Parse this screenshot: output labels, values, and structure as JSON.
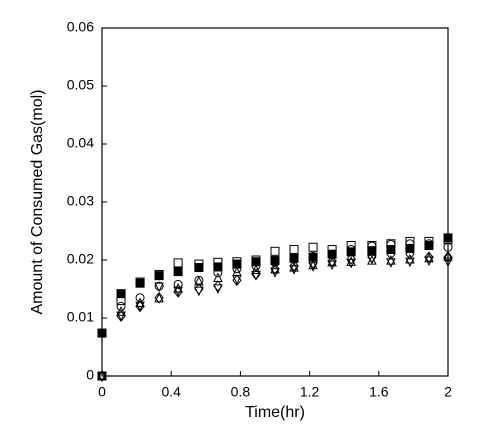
{
  "chart_data": {
    "type": "scatter",
    "xlabel": "Time(hr)",
    "ylabel": "Amount of Consumed Gas(mol)",
    "xlim": [
      0,
      2
    ],
    "ylim": [
      0,
      0.06
    ],
    "xticks": [
      0,
      0.4,
      0.8,
      1.2,
      1.6,
      2
    ],
    "yticks": [
      0,
      0.01,
      0.02,
      0.03,
      0.04,
      0.05,
      0.06
    ],
    "x": [
      0,
      0.11,
      0.22,
      0.33,
      0.44,
      0.56,
      0.67,
      0.78,
      0.89,
      1.0,
      1.11,
      1.22,
      1.33,
      1.44,
      1.56,
      1.67,
      1.78,
      1.89,
      2.0
    ],
    "series": [
      {
        "color": "#000000",
        "marker": "diamond",
        "values": [
          0,
          0.0103,
          0.012,
          0.0135,
          0.0145,
          0.015,
          0.0155,
          0.0165,
          0.0175,
          0.0185,
          0.019,
          0.0195,
          0.0198,
          0.0202,
          0.0205,
          0.021,
          0.021,
          0.0205,
          0.0205
        ]
      },
      {
        "color": "#000000",
        "marker": "triangle-down",
        "values": [
          0,
          0.0105,
          0.0122,
          0.0155,
          0.0148,
          0.0148,
          0.0152,
          0.0168,
          0.0175,
          0.018,
          0.0185,
          0.019,
          0.0193,
          0.0196,
          0.0203,
          0.0197,
          0.0198,
          0.02,
          0.0198
        ]
      },
      {
        "color": "#000000",
        "marker": "triangle-up",
        "values": [
          0,
          0.011,
          0.0125,
          0.0133,
          0.015,
          0.0162,
          0.0168,
          0.0178,
          0.0182,
          0.0183,
          0.0186,
          0.019,
          0.0195,
          0.0196,
          0.0198,
          0.0198,
          0.02,
          0.0202,
          0.0205
        ]
      },
      {
        "color": "#000000",
        "marker": "circle",
        "values": [
          0,
          0.012,
          0.0135,
          0.0155,
          0.0158,
          0.0165,
          0.0178,
          0.0185,
          0.019,
          0.0196,
          0.0202,
          0.0206,
          0.021,
          0.0218,
          0.0224,
          0.0227,
          0.0228,
          0.0228,
          0.0222
        ]
      },
      {
        "color": "#000000",
        "marker": "square",
        "values": [
          0,
          0.013,
          0.0162,
          0.0175,
          0.0195,
          0.0193,
          0.0196,
          0.0197,
          0.02,
          0.0215,
          0.0218,
          0.0222,
          0.0218,
          0.0225,
          0.0225,
          0.0228,
          0.0232,
          0.0232,
          0.0235
        ]
      },
      {
        "color": "#000000",
        "marker": "square-filled",
        "values": [
          0.0074,
          0.0142,
          0.016,
          0.0173,
          0.018,
          0.0187,
          0.0188,
          0.0193,
          0.0197,
          0.0199,
          0.0203,
          0.0205,
          0.021,
          0.0214,
          0.0216,
          0.0218,
          0.022,
          0.0225,
          0.0238
        ]
      }
    ]
  }
}
